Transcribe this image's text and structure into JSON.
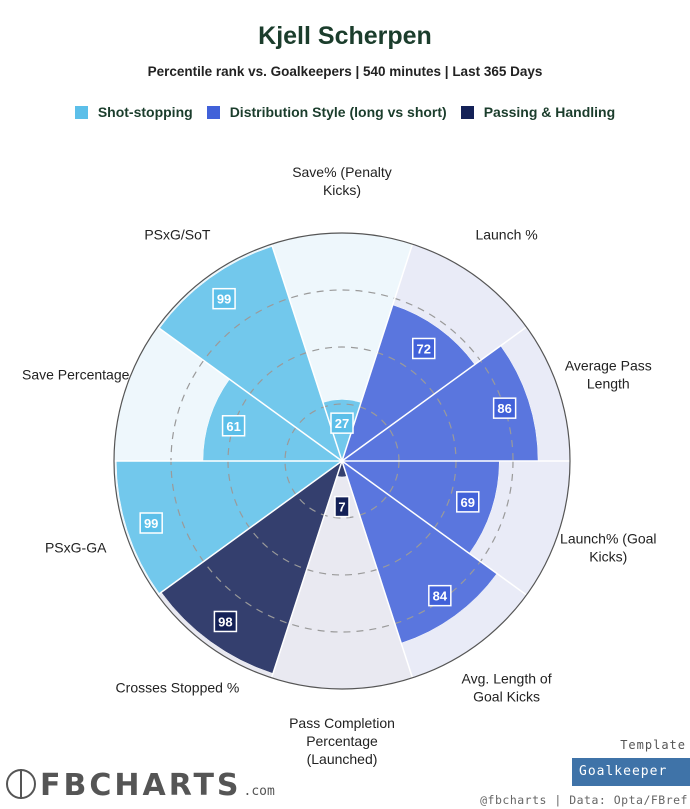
{
  "header": {
    "title": "Kjell Scherpen",
    "subtitle": "Percentile rank vs. Goalkeepers | 540 minutes | Last 365 Days"
  },
  "legend": [
    {
      "label": "Shot-stopping",
      "color": "#5cbfe9"
    },
    {
      "label": "Distribution Style (long vs short)",
      "color": "#4161d9"
    },
    {
      "label": "Passing & Handling",
      "color": "#142157"
    }
  ],
  "chart_data": {
    "type": "polar-bar",
    "title": "Kjell Scherpen",
    "subtitle": "Percentile rank vs. Goalkeepers | 540 minutes | Last 365 Days",
    "rlim": [
      0,
      100
    ],
    "gridlines": [
      25,
      50,
      75
    ],
    "categories": [
      {
        "label": "Save% (Penalty Kicks)",
        "value": 27,
        "group": "Shot-stopping"
      },
      {
        "label": "Launch %",
        "value": 72,
        "group": "Distribution Style (long vs short)"
      },
      {
        "label": "Average Pass Length",
        "value": 86,
        "group": "Distribution Style (long vs short)"
      },
      {
        "label": "Launch% (Goal Kicks)",
        "value": 69,
        "group": "Distribution Style (long vs short)"
      },
      {
        "label": "Avg. Length of Goal Kicks",
        "value": 84,
        "group": "Distribution Style (long vs short)"
      },
      {
        "label": "Pass Completion Percentage (Launched)",
        "value": 7,
        "group": "Passing & Handling"
      },
      {
        "label": "Crosses Stopped %",
        "value": 98,
        "group": "Passing & Handling"
      },
      {
        "label": "PSxG-GA",
        "value": 99,
        "group": "Shot-stopping"
      },
      {
        "label": "Save Percentage",
        "value": 61,
        "group": "Shot-stopping"
      },
      {
        "label": "PSxG/SoT",
        "value": 99,
        "group": "Shot-stopping"
      }
    ]
  },
  "footer": {
    "logo_text": "FBCHARTS",
    "logo_suffix": ".com",
    "template_label": "Template",
    "template_value": "Goalkeeper",
    "credit": "@fbcharts | Data: Opta/FBref"
  }
}
